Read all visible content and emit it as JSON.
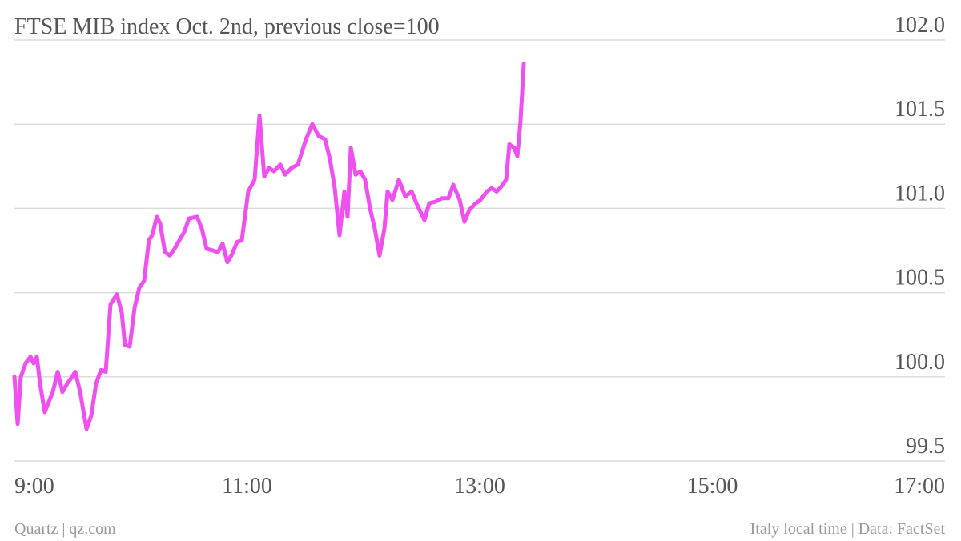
{
  "chart_data": {
    "type": "line",
    "title": "FTSE MIB index Oct. 2nd, previous close=100",
    "source": "Quartz | qz.com",
    "note": "Italy local time | Data: FactSet",
    "color": "#f050f0",
    "grid": true,
    "xlim": [
      9,
      17
    ],
    "xticks": [
      {
        "value": 9,
        "label": "9:00"
      },
      {
        "value": 11,
        "label": "11:00"
      },
      {
        "value": 13,
        "label": "13:00"
      },
      {
        "value": 15,
        "label": "15:00"
      },
      {
        "value": 17,
        "label": "17:00"
      }
    ],
    "ylim": [
      99.5,
      102
    ],
    "yticks": [
      99.5,
      {
        "value": 100,
        "label": "100.0"
      },
      100.5,
      {
        "value": 101,
        "label": "101.0"
      },
      101.5,
      {
        "value": 102,
        "label": "102.0"
      }
    ],
    "x": [
      9.0,
      9.028,
      9.055,
      9.096,
      9.138,
      9.165,
      9.193,
      9.22,
      9.261,
      9.289,
      9.33,
      9.372,
      9.413,
      9.454,
      9.496,
      9.523,
      9.565,
      9.62,
      9.661,
      9.702,
      9.744,
      9.785,
      9.826,
      9.881,
      9.923,
      9.95,
      9.991,
      10.033,
      10.074,
      10.115,
      10.156,
      10.184,
      10.225,
      10.253,
      10.294,
      10.336,
      10.377,
      10.418,
      10.46,
      10.501,
      10.57,
      10.611,
      10.652,
      10.707,
      10.749,
      10.79,
      10.831,
      10.873,
      10.914,
      10.955,
      11.01,
      11.065,
      11.107,
      11.148,
      11.189,
      11.231,
      11.286,
      11.327,
      11.382,
      11.437,
      11.506,
      11.561,
      11.616,
      11.671,
      11.713,
      11.754,
      11.795,
      11.837,
      11.864,
      11.892,
      11.933,
      11.974,
      12.015,
      12.057,
      12.098,
      12.139,
      12.181,
      12.208,
      12.25,
      12.305,
      12.36,
      12.415,
      12.456,
      12.525,
      12.566,
      12.621,
      12.676,
      12.731,
      12.773,
      12.828,
      12.869,
      12.91,
      12.966,
      13.007,
      13.062,
      13.103,
      13.145,
      13.186,
      13.227,
      13.255,
      13.296,
      13.324,
      13.351,
      13.379
    ],
    "values": [
      100.0,
      99.72,
      100.0,
      100.08,
      100.12,
      100.08,
      100.12,
      99.96,
      99.79,
      99.84,
      99.91,
      100.03,
      99.91,
      99.96,
      100.0,
      100.03,
      99.91,
      99.69,
      99.77,
      99.96,
      100.04,
      100.03,
      100.43,
      100.49,
      100.38,
      100.19,
      100.18,
      100.41,
      100.53,
      100.57,
      100.81,
      100.84,
      100.95,
      100.91,
      100.74,
      100.72,
      100.76,
      100.81,
      100.86,
      100.94,
      100.95,
      100.88,
      100.76,
      100.75,
      100.74,
      100.79,
      100.68,
      100.73,
      100.8,
      100.81,
      101.1,
      101.17,
      101.55,
      101.19,
      101.24,
      101.22,
      101.26,
      101.2,
      101.24,
      101.26,
      101.41,
      101.5,
      101.43,
      101.41,
      101.29,
      101.12,
      100.84,
      101.1,
      100.95,
      101.36,
      101.2,
      101.22,
      101.17,
      101.0,
      100.88,
      100.72,
      100.88,
      101.1,
      101.05,
      101.17,
      101.07,
      101.1,
      101.03,
      100.93,
      101.03,
      101.04,
      101.06,
      101.06,
      101.14,
      101.05,
      100.92,
      100.99,
      101.03,
      101.05,
      101.1,
      101.12,
      101.1,
      101.13,
      101.17,
      101.38,
      101.36,
      101.31,
      101.52,
      101.86
    ]
  }
}
